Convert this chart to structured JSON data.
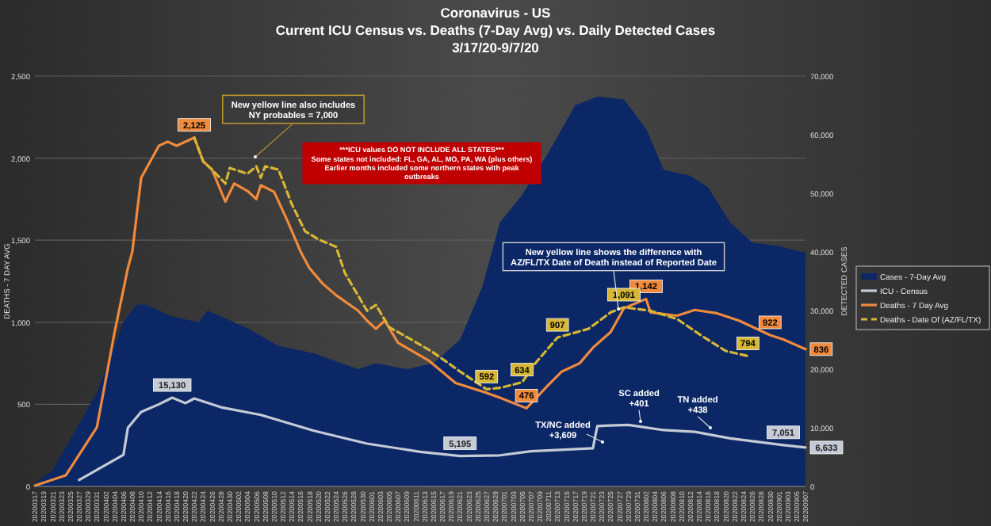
{
  "chart_data": {
    "type": "line",
    "title": "Coronavirus - US",
    "subtitle": "Current ICU Census vs. Deaths (7-Day Avg) vs. Daily Detected Cases\n3/17/20-9/7/20",
    "ylabel": "DEATHS - 7 DAY AVG",
    "y2label": "DETECTED CASES",
    "xlim": [
      "2020-03-17",
      "2020-09-07"
    ],
    "xticks": [
      {
        "value": "2020-03-17",
        "label": "20200317"
      },
      {
        "value": "2020-03-19",
        "label": "20200319"
      },
      {
        "value": "2020-03-21",
        "label": "20200321"
      },
      {
        "value": "2020-03-23",
        "label": "20200323"
      },
      {
        "value": "2020-03-25",
        "label": "20200325"
      },
      {
        "value": "2020-03-27",
        "label": "20200327"
      },
      {
        "value": "2020-03-29",
        "label": "20200329"
      },
      {
        "value": "2020-03-31",
        "label": "20200331"
      },
      {
        "value": "2020-04-02",
        "label": "20200402"
      },
      {
        "value": "2020-04-04",
        "label": "20200404"
      },
      {
        "value": "2020-04-06",
        "label": "20200406"
      },
      {
        "value": "2020-04-08",
        "label": "20200408"
      },
      {
        "value": "2020-04-10",
        "label": "20200410"
      },
      {
        "value": "2020-04-12",
        "label": "20200412"
      },
      {
        "value": "2020-04-14",
        "label": "20200414"
      },
      {
        "value": "2020-04-16",
        "label": "20200416"
      },
      {
        "value": "2020-04-18",
        "label": "20200418"
      },
      {
        "value": "2020-04-20",
        "label": "20200420"
      },
      {
        "value": "2020-04-22",
        "label": "20200422"
      },
      {
        "value": "2020-04-24",
        "label": "20200424"
      },
      {
        "value": "2020-04-26",
        "label": "20200426"
      },
      {
        "value": "2020-04-28",
        "label": "20200428"
      },
      {
        "value": "2020-04-30",
        "label": "20200430"
      },
      {
        "value": "2020-05-02",
        "label": "20200502"
      },
      {
        "value": "2020-05-04",
        "label": "20200504"
      },
      {
        "value": "2020-05-06",
        "label": "20200506"
      },
      {
        "value": "2020-05-08",
        "label": "20200508"
      },
      {
        "value": "2020-05-10",
        "label": "20200510"
      },
      {
        "value": "2020-05-12",
        "label": "20200512"
      },
      {
        "value": "2020-05-14",
        "label": "20200514"
      },
      {
        "value": "2020-05-16",
        "label": "20200516"
      },
      {
        "value": "2020-05-18",
        "label": "20200518"
      },
      {
        "value": "2020-05-20",
        "label": "20200520"
      },
      {
        "value": "2020-05-22",
        "label": "20200522"
      },
      {
        "value": "2020-05-24",
        "label": "20200524"
      },
      {
        "value": "2020-05-26",
        "label": "20200526"
      },
      {
        "value": "2020-05-28",
        "label": "20200528"
      },
      {
        "value": "2020-05-30",
        "label": "20200530"
      },
      {
        "value": "2020-06-01",
        "label": "20200601"
      },
      {
        "value": "2020-06-03",
        "label": "20200603"
      },
      {
        "value": "2020-06-05",
        "label": "20200605"
      },
      {
        "value": "2020-06-07",
        "label": "20200607"
      },
      {
        "value": "2020-06-09",
        "label": "20200609"
      },
      {
        "value": "2020-06-11",
        "label": "20200611"
      },
      {
        "value": "2020-06-13",
        "label": "20200613"
      },
      {
        "value": "2020-06-15",
        "label": "20200615"
      },
      {
        "value": "2020-06-17",
        "label": "20200617"
      },
      {
        "value": "2020-06-19",
        "label": "20200619"
      },
      {
        "value": "2020-06-21",
        "label": "20200621"
      },
      {
        "value": "2020-06-23",
        "label": "20200623"
      },
      {
        "value": "2020-06-25",
        "label": "20200625"
      },
      {
        "value": "2020-06-27",
        "label": "20200627"
      },
      {
        "value": "2020-06-29",
        "label": "20200629"
      },
      {
        "value": "2020-07-01",
        "label": "20200701"
      },
      {
        "value": "2020-07-03",
        "label": "20200703"
      },
      {
        "value": "2020-07-05",
        "label": "20200705"
      },
      {
        "value": "2020-07-07",
        "label": "20200707"
      },
      {
        "value": "2020-07-09",
        "label": "20200709"
      },
      {
        "value": "2020-07-11",
        "label": "20200711"
      },
      {
        "value": "2020-07-13",
        "label": "20200713"
      },
      {
        "value": "2020-07-15",
        "label": "20200715"
      },
      {
        "value": "2020-07-17",
        "label": "20200717"
      },
      {
        "value": "2020-07-19",
        "label": "20200719"
      },
      {
        "value": "2020-07-21",
        "label": "20200721"
      },
      {
        "value": "2020-07-23",
        "label": "20200723"
      },
      {
        "value": "2020-07-25",
        "label": "20200725"
      },
      {
        "value": "2020-07-27",
        "label": "20200727"
      },
      {
        "value": "2020-07-29",
        "label": "20200729"
      },
      {
        "value": "2020-07-31",
        "label": "20200731"
      },
      {
        "value": "2020-08-02",
        "label": "20200802"
      },
      {
        "value": "2020-08-04",
        "label": "20200804"
      },
      {
        "value": "2020-08-06",
        "label": "20200806"
      },
      {
        "value": "2020-08-08",
        "label": "20200808"
      },
      {
        "value": "2020-08-10",
        "label": "20200810"
      },
      {
        "value": "2020-08-12",
        "label": "20200812"
      },
      {
        "value": "2020-08-14",
        "label": "20200814"
      },
      {
        "value": "2020-08-16",
        "label": "20200816"
      },
      {
        "value": "2020-08-18",
        "label": "20200818"
      },
      {
        "value": "2020-08-20",
        "label": "20200820"
      },
      {
        "value": "2020-08-22",
        "label": "20200822"
      },
      {
        "value": "2020-08-24",
        "label": "20200824"
      },
      {
        "value": "2020-08-26",
        "label": "20200826"
      },
      {
        "value": "2020-08-28",
        "label": "20200828"
      },
      {
        "value": "2020-08-30",
        "label": "20200830"
      },
      {
        "value": "2020-09-01",
        "label": "20200901"
      },
      {
        "value": "2020-09-03",
        "label": "20200903"
      },
      {
        "value": "2020-09-05",
        "label": "20200905"
      },
      {
        "value": "2020-09-07",
        "label": "20200907"
      }
    ],
    "ylim": [
      0,
      2500
    ],
    "yticks": [
      0,
      500,
      {
        "value": 1000,
        "label": "1,000"
      },
      {
        "value": 1500,
        "label": "1,500"
      },
      {
        "value": 2000,
        "label": "2,000"
      },
      {
        "value": 2500,
        "label": "2,500"
      }
    ],
    "y2lim": [
      0,
      70000
    ],
    "y2ticks": [
      0,
      {
        "value": 10000,
        "label": "10,000"
      },
      {
        "value": 20000,
        "label": "20,000"
      },
      {
        "value": 30000,
        "label": "30,000"
      },
      {
        "value": 40000,
        "label": "40,000"
      },
      {
        "value": 50000,
        "label": "50,000"
      },
      {
        "value": 60000,
        "label": "60,000"
      },
      {
        "value": 70000,
        "label": "70,000"
      }
    ],
    "grid": "y",
    "legend": "right",
    "marker": "none",
    "series": [
      {
        "name": "Cases - 7-Day Avg",
        "type": "area",
        "axis": "y2",
        "color": "#0b2766",
        "x": [
          "2020-03-17",
          "2020-03-21",
          "2020-03-31",
          "2020-04-06",
          "2020-04-09",
          "2020-04-11",
          "2020-04-17",
          "2020-04-23",
          "2020-04-25",
          "2020-05-04",
          "2020-05-11",
          "2020-05-19",
          "2020-05-29",
          "2020-06-02",
          "2020-06-09",
          "2020-06-15",
          "2020-06-21",
          "2020-06-26",
          "2020-06-30",
          "2020-07-05",
          "2020-07-11",
          "2020-07-17",
          "2020-07-22",
          "2020-07-28",
          "2020-08-02",
          "2020-08-06",
          "2020-08-12",
          "2020-08-16",
          "2020-08-21",
          "2020-08-26",
          "2020-09-01",
          "2020-09-06",
          "2020-09-07"
        ],
        "values": [
          500,
          2700,
          16000,
          28000,
          31000,
          31000,
          29000,
          28000,
          30000,
          27000,
          24000,
          22700,
          20000,
          21000,
          20000,
          21000,
          25000,
          34000,
          45000,
          49700,
          57000,
          65000,
          66500,
          66000,
          61000,
          54000,
          53000,
          51000,
          45000,
          41600,
          41000,
          40000,
          40000
        ]
      },
      {
        "name": "ICU - Census",
        "axis": "y2",
        "color": "#c5cbd6",
        "line_style": "solid",
        "x": [
          "2020-03-27",
          "2020-04-06",
          "2020-04-07",
          "2020-04-10",
          "2020-04-14",
          "2020-04-17",
          "2020-04-20",
          "2020-04-22",
          "2020-04-28",
          "2020-05-07",
          "2020-05-19",
          "2020-05-31",
          "2020-06-12",
          "2020-06-21",
          "2020-06-30",
          "2020-07-07",
          "2020-07-21",
          "2020-07-22",
          "2020-07-29",
          "2020-08-06",
          "2020-08-13",
          "2020-08-21",
          "2020-09-02",
          "2020-09-07"
        ],
        "values": [
          1100,
          5400,
          10000,
          12700,
          14000,
          15130,
          14200,
          15000,
          13500,
          12200,
          9500,
          7300,
          5900,
          5195,
          5300,
          6000,
          6500,
          10300,
          10500,
          9600,
          9300,
          8200,
          7051,
          6633
        ],
        "value_labels": [
          null,
          null,
          null,
          null,
          null,
          "15,130",
          null,
          null,
          null,
          null,
          null,
          null,
          null,
          "5,195",
          null,
          null,
          null,
          null,
          null,
          null,
          null,
          null,
          "7,051",
          "6,633"
        ]
      },
      {
        "name": "Deaths - 7 Day Avg",
        "color": "#f08a3c",
        "line_style": "solid",
        "x": [
          "2020-03-17",
          "2020-03-24",
          "2020-03-31",
          "2020-04-04",
          "2020-04-07",
          "2020-04-08",
          "2020-04-10",
          "2020-04-14",
          "2020-04-16",
          "2020-04-18",
          "2020-04-22",
          "2020-04-24",
          "2020-04-26",
          "2020-04-29",
          "2020-05-01",
          "2020-05-04",
          "2020-05-06",
          "2020-05-07",
          "2020-05-10",
          "2020-05-13",
          "2020-05-16",
          "2020-05-18",
          "2020-05-21",
          "2020-05-24",
          "2020-05-29",
          "2020-05-31",
          "2020-06-02",
          "2020-06-04",
          "2020-06-07",
          "2020-06-14",
          "2020-06-20",
          "2020-06-27",
          "2020-06-30",
          "2020-07-06",
          "2020-07-11",
          "2020-07-14",
          "2020-07-18",
          "2020-07-21",
          "2020-07-25",
          "2020-07-28",
          "2020-08-02",
          "2020-08-03",
          "2020-08-09",
          "2020-08-13",
          "2020-08-18",
          "2020-08-23",
          "2020-08-30",
          "2020-09-02",
          "2020-09-07"
        ],
        "values": [
          5,
          68,
          360,
          940,
          1330,
          1430,
          1880,
          2075,
          2100,
          2075,
          2125,
          1980,
          1930,
          1735,
          1845,
          1800,
          1750,
          1835,
          1795,
          1620,
          1430,
          1330,
          1235,
          1165,
          1070,
          1010,
          960,
          1010,
          875,
          765,
          630,
          570,
          540,
          476,
          620,
          700,
          750,
          845,
          940,
          1085,
          1142,
          1060,
          1040,
          1075,
          1055,
          1010,
          922,
          895,
          836
        ],
        "value_labels": [
          null,
          null,
          null,
          null,
          null,
          null,
          null,
          null,
          null,
          null,
          "2,125",
          null,
          null,
          null,
          null,
          null,
          null,
          null,
          null,
          null,
          null,
          null,
          null,
          null,
          null,
          null,
          null,
          null,
          null,
          null,
          null,
          null,
          null,
          "476",
          null,
          null,
          null,
          null,
          null,
          null,
          "1,142",
          null,
          null,
          null,
          null,
          null,
          "922",
          null,
          "836"
        ]
      },
      {
        "name": "Deaths - Date Of (AZ/FL/TX)",
        "color": "#d7b735",
        "line_style": "dashed",
        "x": [
          "2020-04-22",
          "2020-04-24",
          "2020-04-26",
          "2020-04-29",
          "2020-04-30",
          "2020-05-04",
          "2020-05-06",
          "2020-05-07",
          "2020-05-08",
          "2020-05-11",
          "2020-05-14",
          "2020-05-17",
          "2020-05-20",
          "2020-05-24",
          "2020-05-25",
          "2020-05-26",
          "2020-05-31",
          "2020-06-02",
          "2020-06-05",
          "2020-06-10",
          "2020-06-15",
          "2020-06-21",
          "2020-06-27",
          "2020-06-30",
          "2020-07-05",
          "2020-07-08",
          "2020-07-13",
          "2020-07-20",
          "2020-07-25",
          "2020-07-28",
          "2020-08-03",
          "2020-08-09",
          "2020-08-15",
          "2020-08-20",
          "2020-08-25"
        ],
        "values": [
          2125,
          1980,
          1930,
          1845,
          1940,
          1905,
          1950,
          1880,
          1950,
          1930,
          1720,
          1555,
          1505,
          1460,
          1380,
          1300,
          1070,
          1105,
          970,
          895,
          815,
          700,
          592,
          600,
          634,
          750,
          907,
          960,
          1060,
          1091,
          1070,
          1020,
          910,
          825,
          794
        ],
        "value_labels": [
          null,
          null,
          null,
          null,
          null,
          null,
          null,
          null,
          null,
          null,
          null,
          null,
          null,
          null,
          null,
          null,
          null,
          null,
          null,
          null,
          null,
          null,
          "592",
          null,
          "634",
          null,
          "907",
          null,
          null,
          "1,091",
          null,
          null,
          null,
          null,
          "794"
        ]
      }
    ],
    "annotations": [
      "New yellow line also includes\nNY probables = 7,000",
      "***ICU values DO NOT INCLUDE ALL STATES***\nSome states not included: FL, GA, AL, MO, PA, WA (plus others)\nEarlier months included some northern states with peak\noutbreaks",
      "New yellow line shows the difference with\nAZ/FL/TX Date of Death instead of Reported Date",
      "TX/NC added\n+3,609",
      "SC added\n+401",
      "TN added\n+438"
    ]
  }
}
